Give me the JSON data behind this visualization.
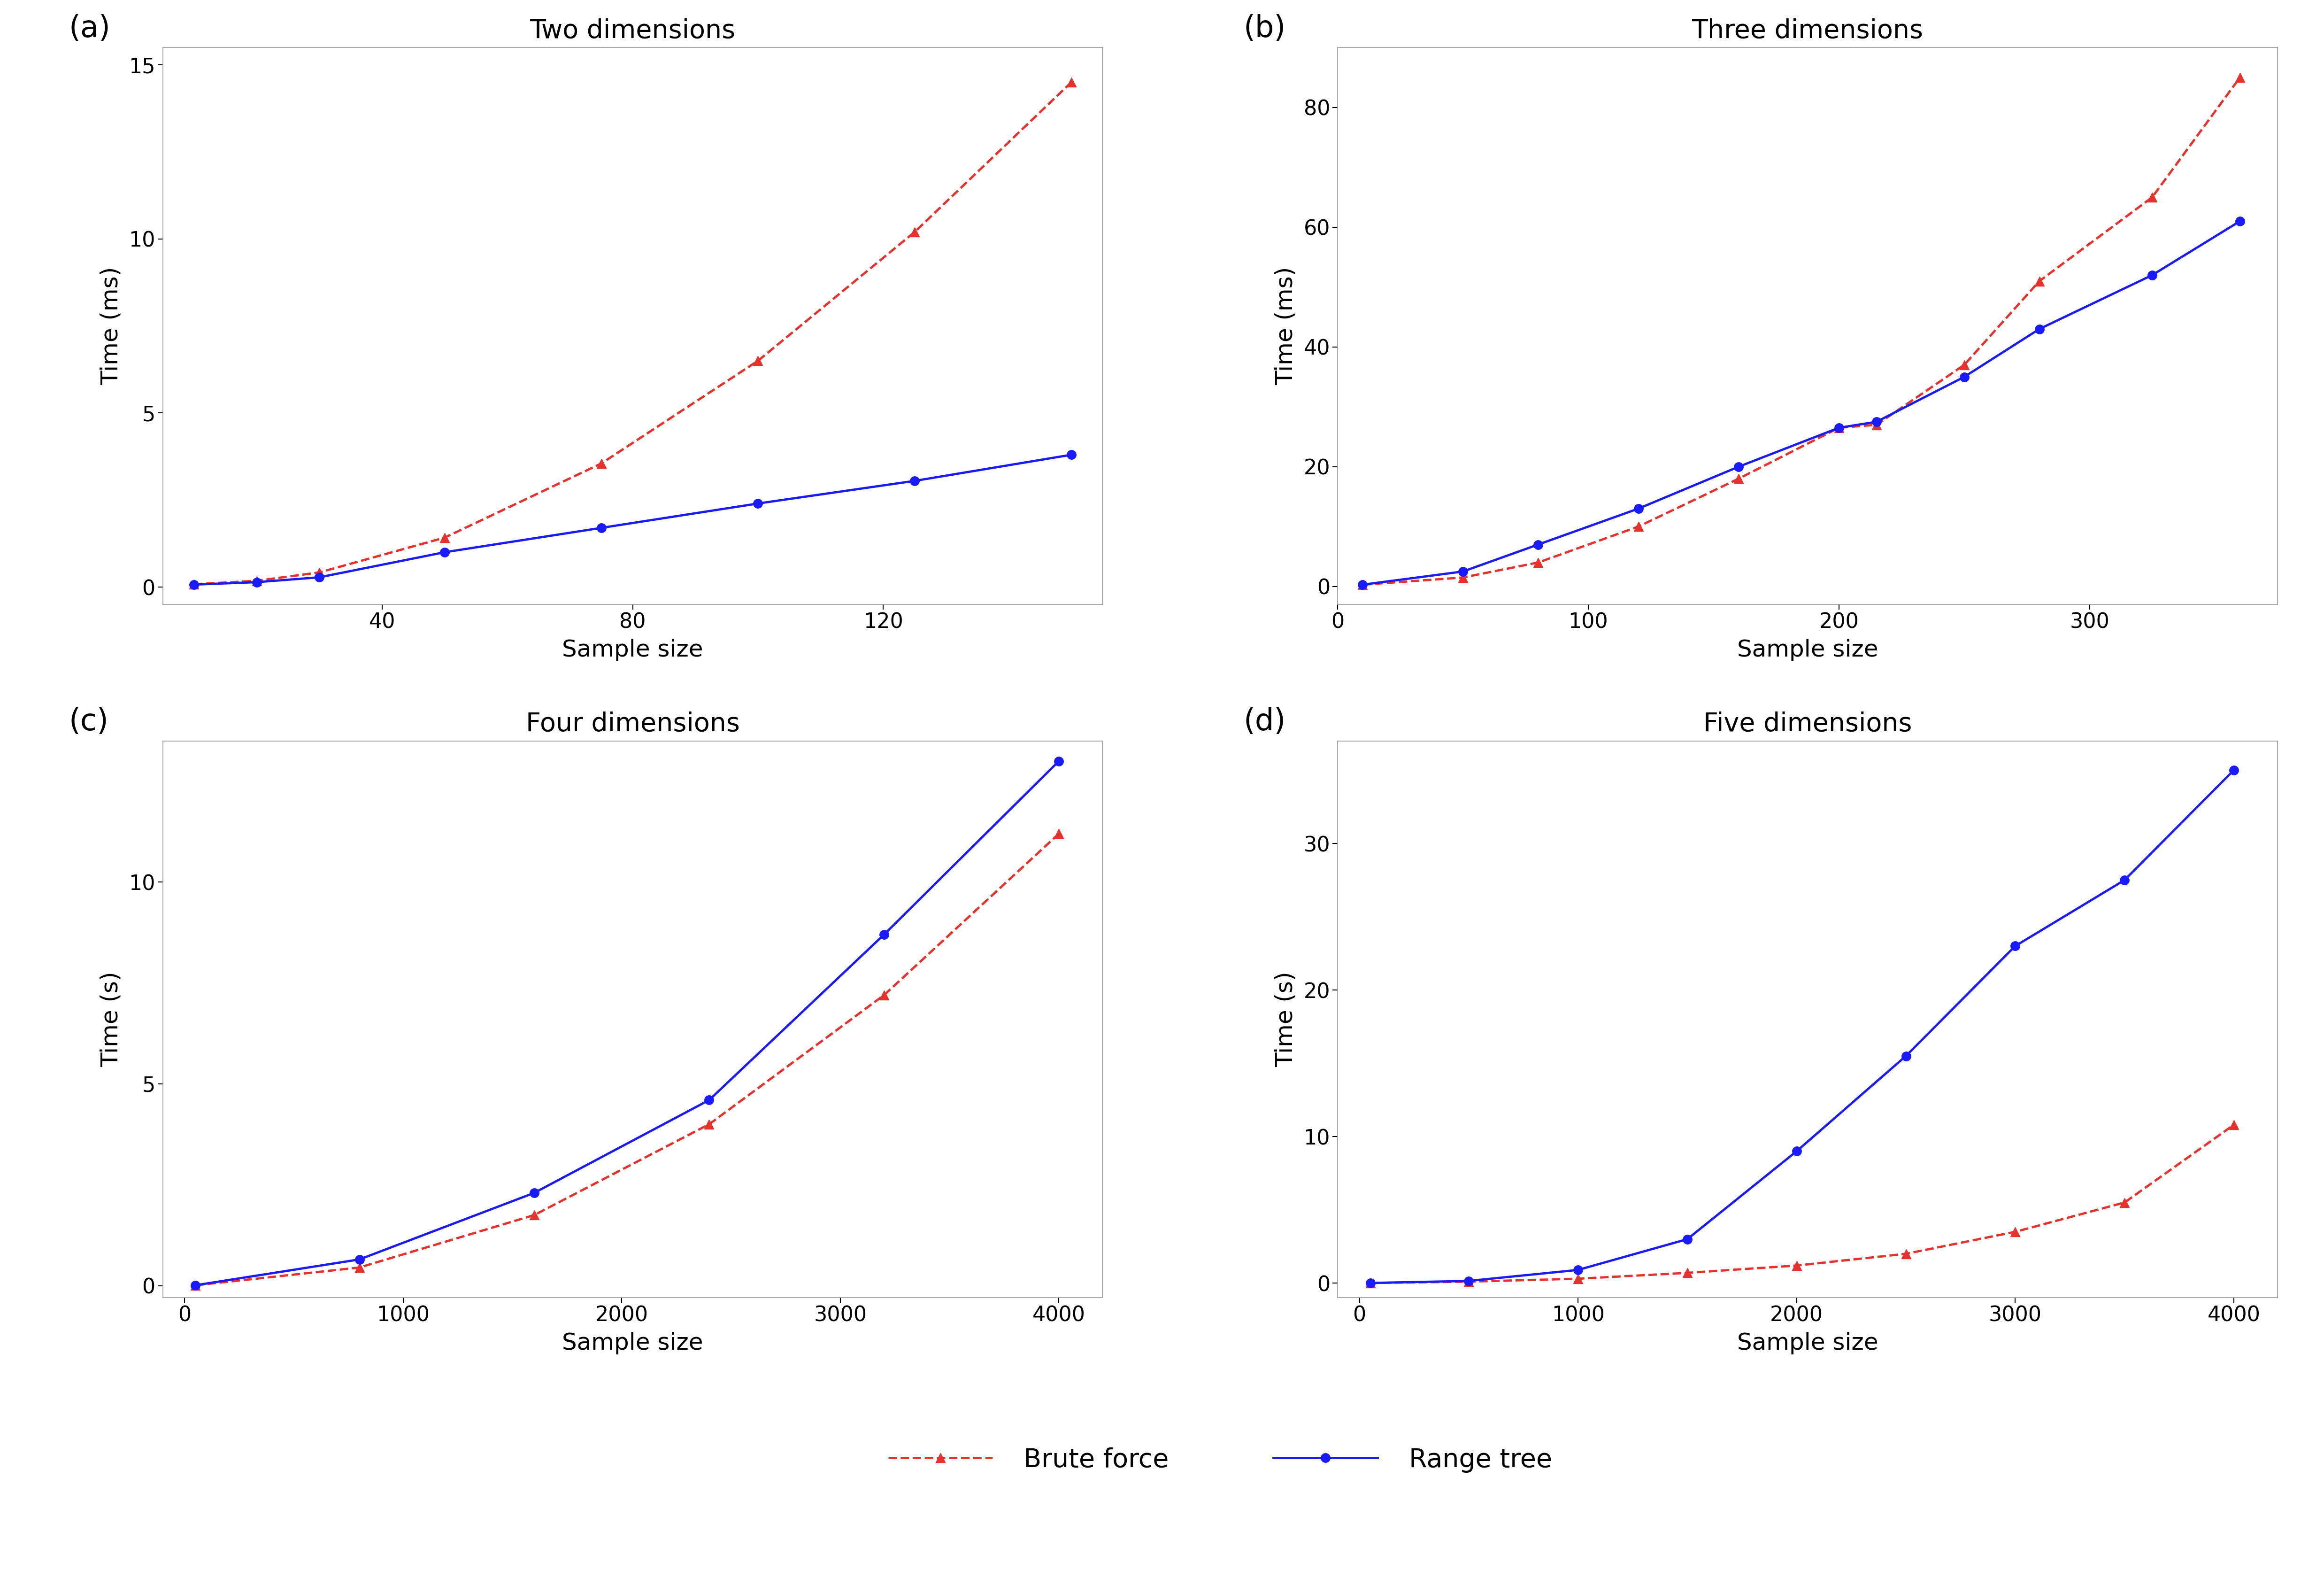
{
  "panels": [
    {
      "label": "(a)",
      "title": "Two dimensions",
      "ylabel": "Time (ms)",
      "xlabel": "Sample size",
      "xlim": [
        5,
        155
      ],
      "ylim": [
        -0.5,
        15.5
      ],
      "xticks": [
        40,
        80,
        120
      ],
      "yticks": [
        0,
        5,
        10,
        15
      ],
      "brute_x": [
        10,
        20,
        30,
        50,
        75,
        100,
        125,
        150
      ],
      "brute_y": [
        0.08,
        0.18,
        0.42,
        1.42,
        3.55,
        6.5,
        10.2,
        14.5
      ],
      "tree_x": [
        10,
        20,
        30,
        50,
        75,
        100,
        125,
        150
      ],
      "tree_y": [
        0.07,
        0.14,
        0.28,
        1.0,
        1.7,
        2.4,
        3.05,
        3.8
      ]
    },
    {
      "label": "(b)",
      "title": "Three dimensions",
      "ylabel": "Time (ms)",
      "xlabel": "Sample size",
      "xlim": [
        0,
        375
      ],
      "ylim": [
        -3,
        90
      ],
      "xticks": [
        0,
        100,
        200,
        300
      ],
      "yticks": [
        0,
        20,
        40,
        60,
        80
      ],
      "brute_x": [
        10,
        50,
        80,
        120,
        160,
        200,
        215,
        250,
        280,
        325,
        360
      ],
      "brute_y": [
        0.3,
        1.5,
        4.0,
        10.0,
        18.0,
        26.5,
        27.0,
        37.0,
        51.0,
        65.0,
        85.0
      ],
      "tree_x": [
        10,
        50,
        80,
        120,
        160,
        200,
        215,
        250,
        280,
        325,
        360
      ],
      "tree_y": [
        0.3,
        2.5,
        7.0,
        13.0,
        20.0,
        26.5,
        27.5,
        35.0,
        43.0,
        52.0,
        61.0
      ]
    },
    {
      "label": "(c)",
      "title": "Four dimensions",
      "ylabel": "Time (s)",
      "xlabel": "Sample size",
      "xlim": [
        -100,
        4200
      ],
      "ylim": [
        -0.3,
        13.5
      ],
      "xticks": [
        0,
        1000,
        2000,
        3000,
        4000
      ],
      "yticks": [
        0,
        5,
        10
      ],
      "brute_x": [
        50,
        800,
        1600,
        2400,
        3200,
        4000
      ],
      "brute_y": [
        0.01,
        0.45,
        1.75,
        4.0,
        7.2,
        11.2
      ],
      "tree_x": [
        50,
        800,
        1600,
        2400,
        3200,
        4000
      ],
      "tree_y": [
        0.01,
        0.65,
        2.3,
        4.6,
        8.7,
        13.0
      ]
    },
    {
      "label": "(d)",
      "title": "Five dimensions",
      "ylabel": "Time (s)",
      "xlabel": "Sample size",
      "xlim": [
        -100,
        4200
      ],
      "ylim": [
        -1,
        37
      ],
      "xticks": [
        0,
        1000,
        2000,
        3000,
        4000
      ],
      "yticks": [
        0,
        10,
        20,
        30
      ],
      "brute_x": [
        50,
        500,
        1000,
        1500,
        2000,
        2500,
        3000,
        3500,
        4000
      ],
      "brute_y": [
        0.01,
        0.1,
        0.3,
        0.7,
        1.2,
        2.0,
        3.5,
        5.5,
        10.8
      ],
      "tree_x": [
        50,
        500,
        1000,
        1500,
        2000,
        2500,
        3000,
        3500,
        4000
      ],
      "tree_y": [
        0.01,
        0.15,
        0.9,
        3.0,
        9.0,
        15.5,
        23.0,
        27.5,
        35.0
      ]
    }
  ],
  "brute_color": "#e8312a",
  "tree_color": "#1a1aff",
  "brute_label": "Brute force",
  "tree_label": "Range tree",
  "linewidth": 3.5,
  "markersize": 14,
  "title_fontsize": 40,
  "label_fontsize": 36,
  "tick_fontsize": 32,
  "legend_fontsize": 40,
  "panel_label_fontsize": 46,
  "background_color": "#ffffff"
}
